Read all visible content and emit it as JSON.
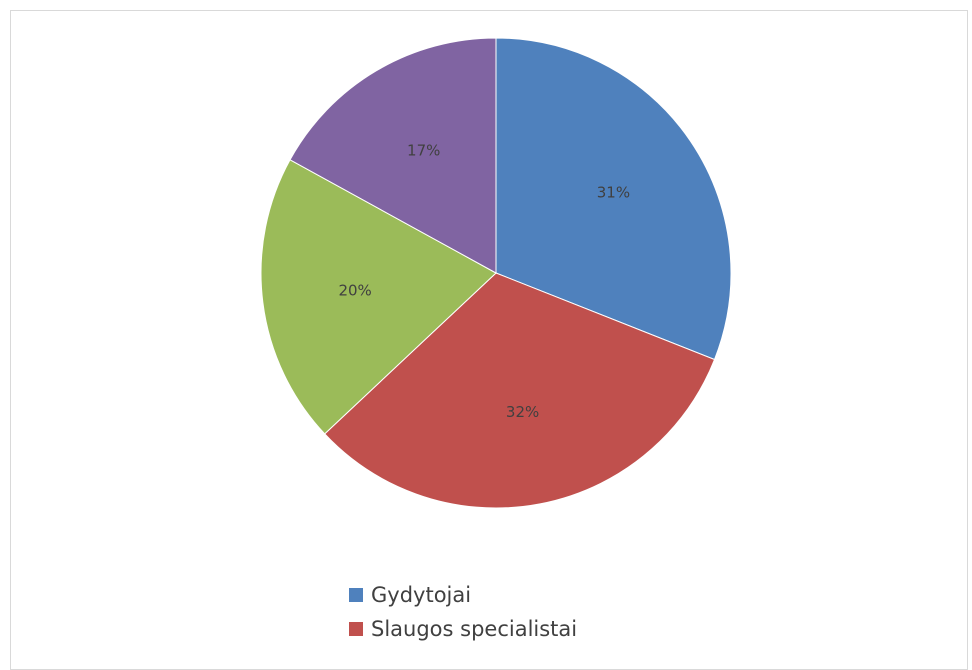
{
  "chart_data": {
    "type": "pie",
    "title": "",
    "slices": [
      {
        "label": "31%",
        "value": 31,
        "color": "#4f81bd"
      },
      {
        "label": "32%",
        "value": 32,
        "color": "#c0504d"
      },
      {
        "label": "20%",
        "value": 20,
        "color": "#9bbb59"
      },
      {
        "label": "17%",
        "value": 17,
        "color": "#8064a2"
      }
    ],
    "legend": {
      "position": "bottom",
      "entries": [
        {
          "name": "Gydytojai",
          "color": "#4f81bd"
        },
        {
          "name": "Slaugos specialistai",
          "color": "#c0504d"
        }
      ]
    }
  }
}
